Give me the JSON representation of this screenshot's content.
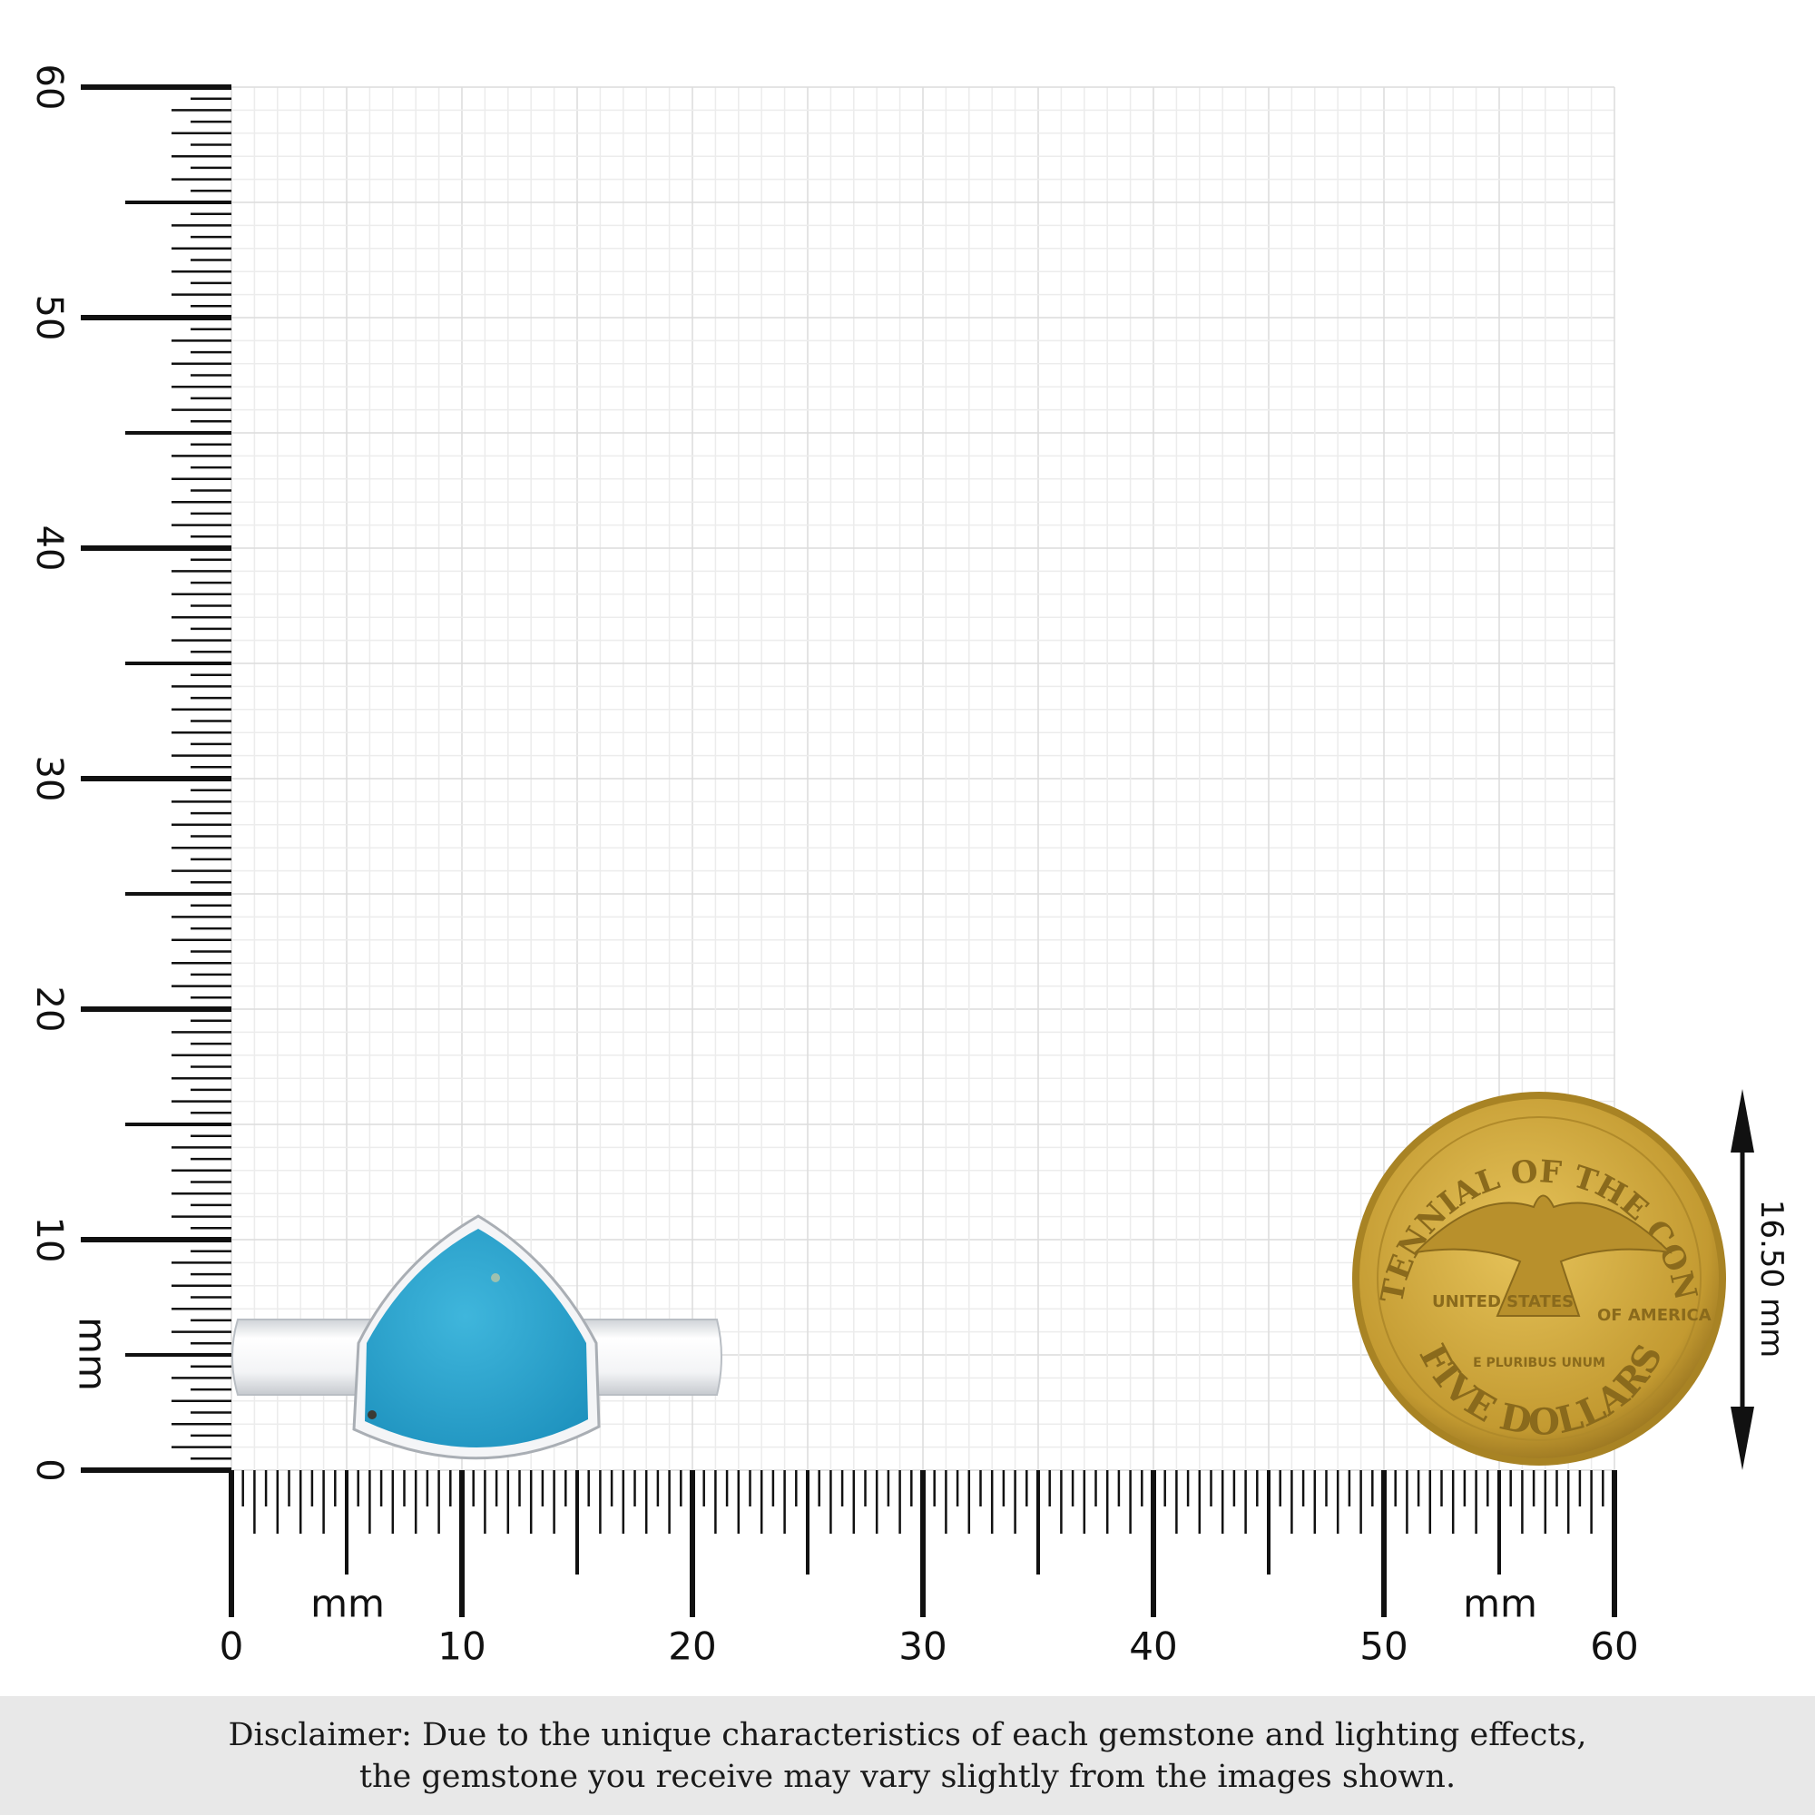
{
  "ruler": {
    "unit_label": "mm",
    "vertical_labels": [
      "0",
      "10",
      "20",
      "30",
      "40",
      "50",
      "60"
    ],
    "horizontal_labels": [
      "0",
      "10",
      "20",
      "30",
      "40",
      "50",
      "60"
    ],
    "max_mm": 60
  },
  "coin": {
    "top_text": "BICENTENNIAL OF THE CONGRESS",
    "left_text": "UNITED STATES",
    "right_text": "OF AMERICA",
    "motto": "E PLURIBUS UNUM",
    "denomination": "FIVE DOLLARS",
    "color": "#c9a33a"
  },
  "coin_dimension": "16.50 mm",
  "product": {
    "stone_color": "#2fa8d0",
    "metal_color": "#e9ecef"
  },
  "disclaimer": {
    "line1": "Disclaimer: Due to the unique characteristics of each gemstone and lighting effects,",
    "line2": "the gemstone you receive may vary slightly from the images shown."
  }
}
